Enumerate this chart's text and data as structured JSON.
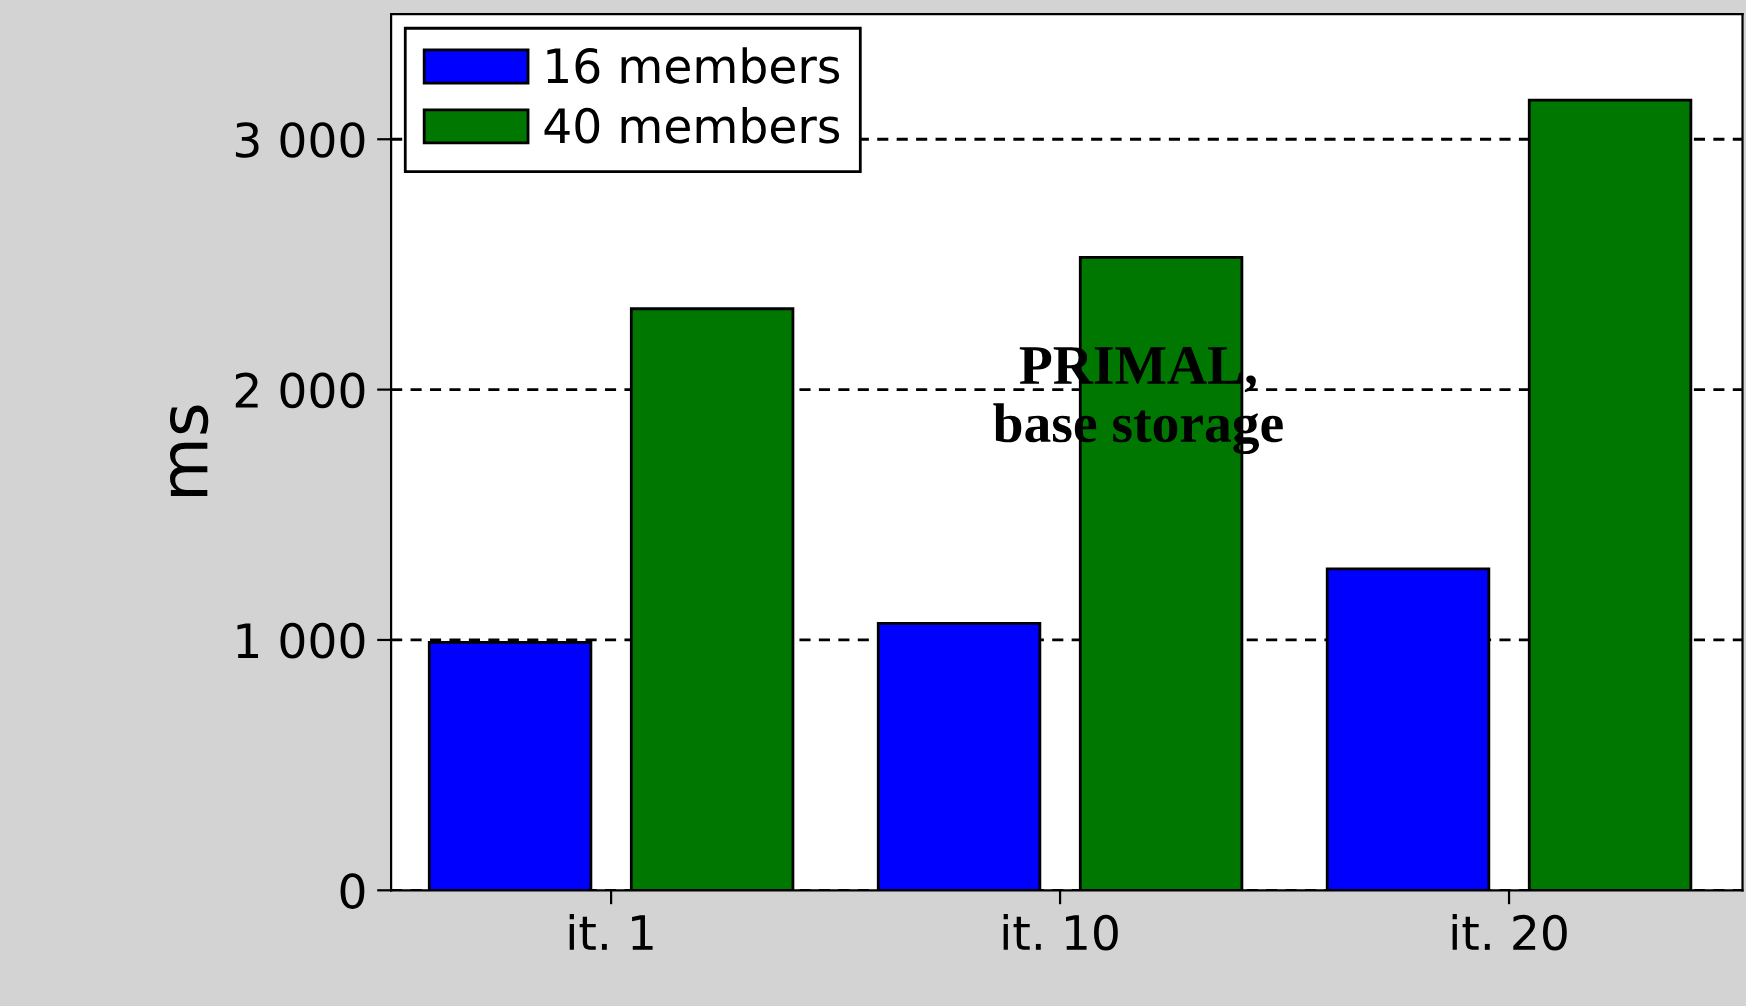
{
  "chart_data": {
    "type": "bar",
    "categories": [
      "it. 1",
      "it. 10",
      "it. 20"
    ],
    "series": [
      {
        "name": "16 members",
        "color": "#0000ff",
        "values": [
          990,
          1066,
          1284
        ]
      },
      {
        "name": "40 members",
        "color": "#007700",
        "values": [
          2323,
          2528,
          3156
        ]
      }
    ],
    "ylabel": "ms",
    "annotations": [
      "PRIMAL,\nbase storage"
    ],
    "ylim": [
      0,
      3500
    ],
    "yticks": [
      0,
      {
        "value": 1000,
        "label": "1 000"
      },
      {
        "value": 2000,
        "label": "2 000"
      },
      {
        "value": 3000,
        "label": "3 000"
      }
    ],
    "grid": "y",
    "legend": "top left"
  }
}
